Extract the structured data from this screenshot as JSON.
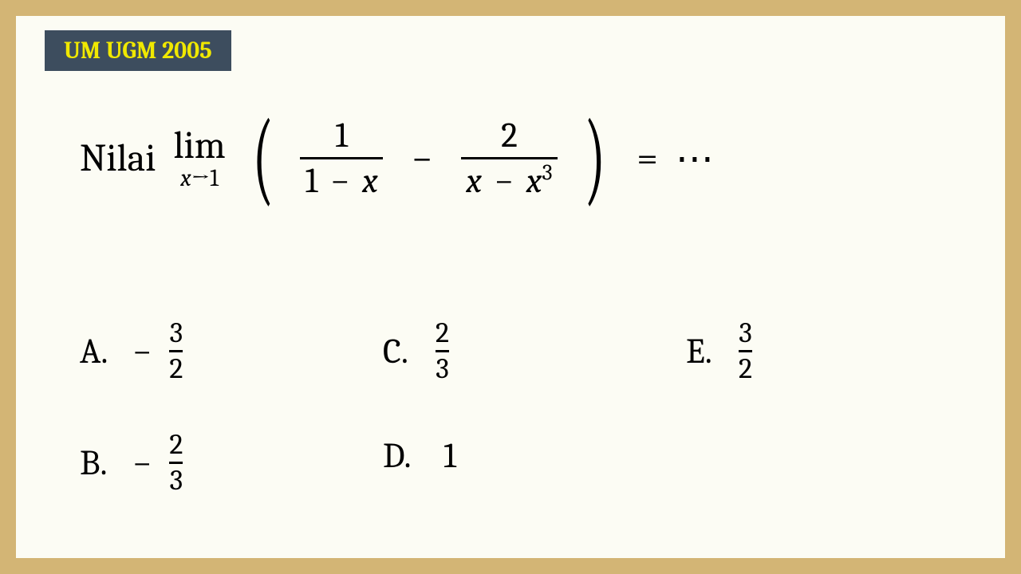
{
  "colors": {
    "border": "#d3b575",
    "paper": "#fcfcf4",
    "badge_bg": "#3d4d5e",
    "badge_fg": "#f0e800",
    "text": "#000000"
  },
  "badge": {
    "text": "UM UGM 2005"
  },
  "question": {
    "lead": "Nilai",
    "limit_top": "lim",
    "limit_var": "x",
    "limit_arrow": "→",
    "limit_to": "1",
    "frac1_num": "1",
    "frac1_den_a": "1",
    "frac1_den_op": "−",
    "frac1_den_b": "x",
    "middle_op": "−",
    "frac2_num": "2",
    "frac2_den_a": "x",
    "frac2_den_op": "−",
    "frac2_den_b": "x",
    "frac2_den_exp": "3",
    "equals": "=",
    "dots": "⋯"
  },
  "choices": {
    "A": {
      "label": "A.",
      "sign": "−",
      "num": "3",
      "den": "2"
    },
    "B": {
      "label": "B.",
      "sign": "−",
      "num": "2",
      "den": "3"
    },
    "C": {
      "label": "C.",
      "num": "2",
      "den": "3"
    },
    "D": {
      "label": "D.",
      "value": "1"
    },
    "E": {
      "label": "E.",
      "num": "3",
      "den": "2"
    }
  }
}
